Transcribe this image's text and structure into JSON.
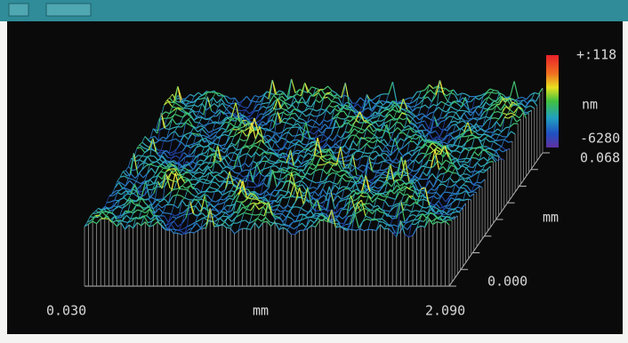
{
  "plot": {
    "scale_max": "+:118",
    "scale_unit": "nm",
    "scale_min": "-6280",
    "y_extent": "0.068",
    "y_axis_unit": "mm",
    "y_origin": "0.000",
    "x_origin": "0.030",
    "x_axis_unit": "mm",
    "x_end": "2.090"
  }
}
